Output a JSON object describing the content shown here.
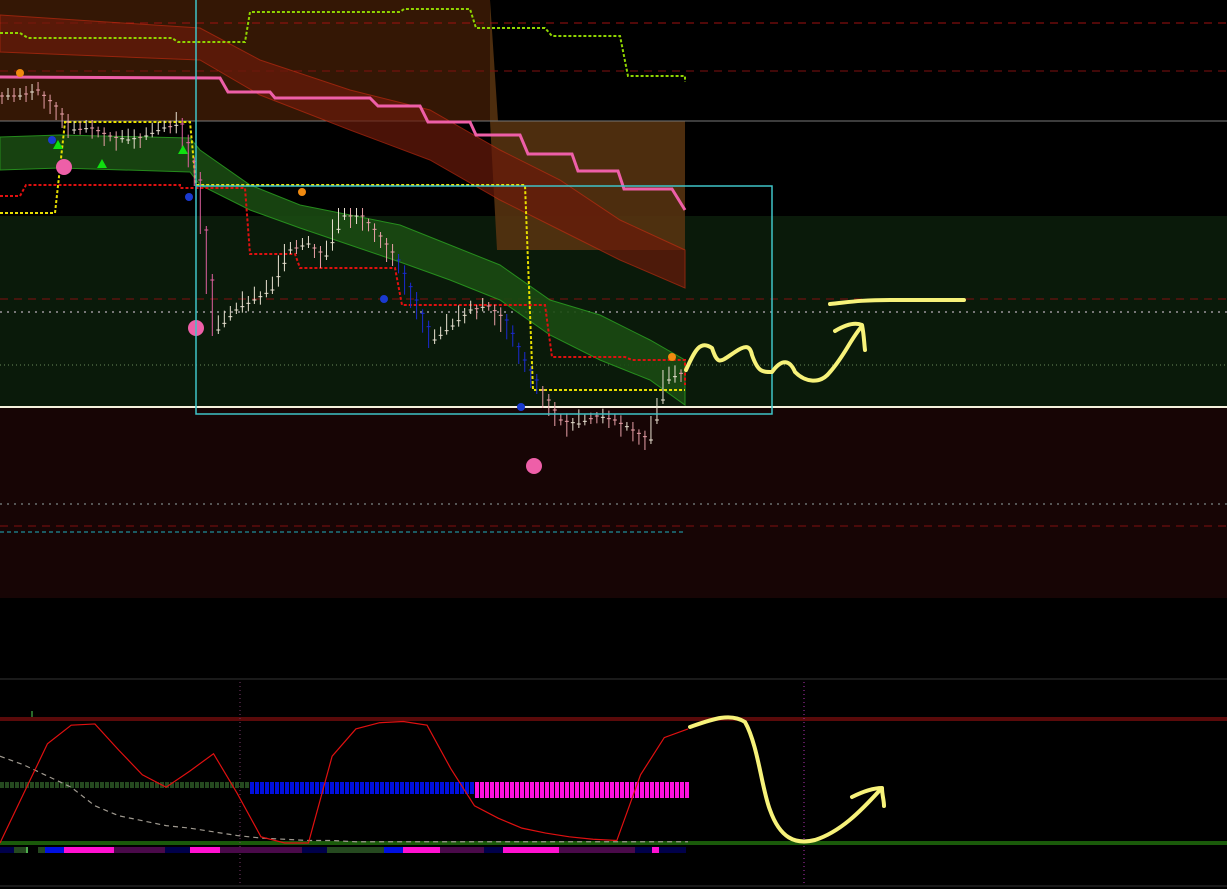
{
  "colors": {
    "background": "#000000",
    "bull_zone": "#0a1a0a",
    "bear_zone": "#170505",
    "selection_box": "#3fc4c8",
    "pink_line": "#ee5fa8",
    "lime_line": "#8fd400",
    "stop_red": "#e01010",
    "stop_yellow": "#e8e000",
    "oscillator": "#e01010",
    "annotation": "#f7f27a",
    "histo_green": "#25491f",
    "histo_blue": "#0010e0",
    "histo_magenta": "#ff10e0"
  },
  "chart_data": [
    {
      "type": "candlestick",
      "close": [
        252,
        255,
        247,
        235,
        236,
        232,
        230,
        232,
        236,
        238,
        210,
        135,
        145,
        150,
        155,
        175,
        178,
        172,
        192,
        192,
        182,
        170,
        150,
        130,
        137,
        145,
        147,
        140,
        120,
        105,
        90,
        88,
        92,
        90,
        85,
        80,
        110,
        115
      ],
      "markers": [
        "orange-dot",
        "blue-dot",
        "green-triangle",
        "pink-circle"
      ]
    },
    {
      "type": "line",
      "series": [
        {
          "values": [
            0,
            40,
            80,
            95,
            96,
            75,
            55,
            45,
            58,
            72,
            40,
            5,
            0,
            0,
            70,
            92,
            97,
            98,
            95,
            60,
            30,
            20,
            12,
            8,
            5,
            3,
            2,
            55,
            85,
            92
          ]
        },
        {
          "values": [
            70,
            63,
            54,
            45,
            30,
            22,
            18,
            14,
            12,
            9,
            6,
            4,
            3,
            2,
            2,
            1,
            1,
            1,
            1,
            1,
            1,
            1,
            1,
            1,
            1,
            1,
            1,
            1,
            1,
            1
          ]
        }
      ],
      "histogram_states": [
        "green",
        "blue",
        "magenta"
      ]
    }
  ]
}
